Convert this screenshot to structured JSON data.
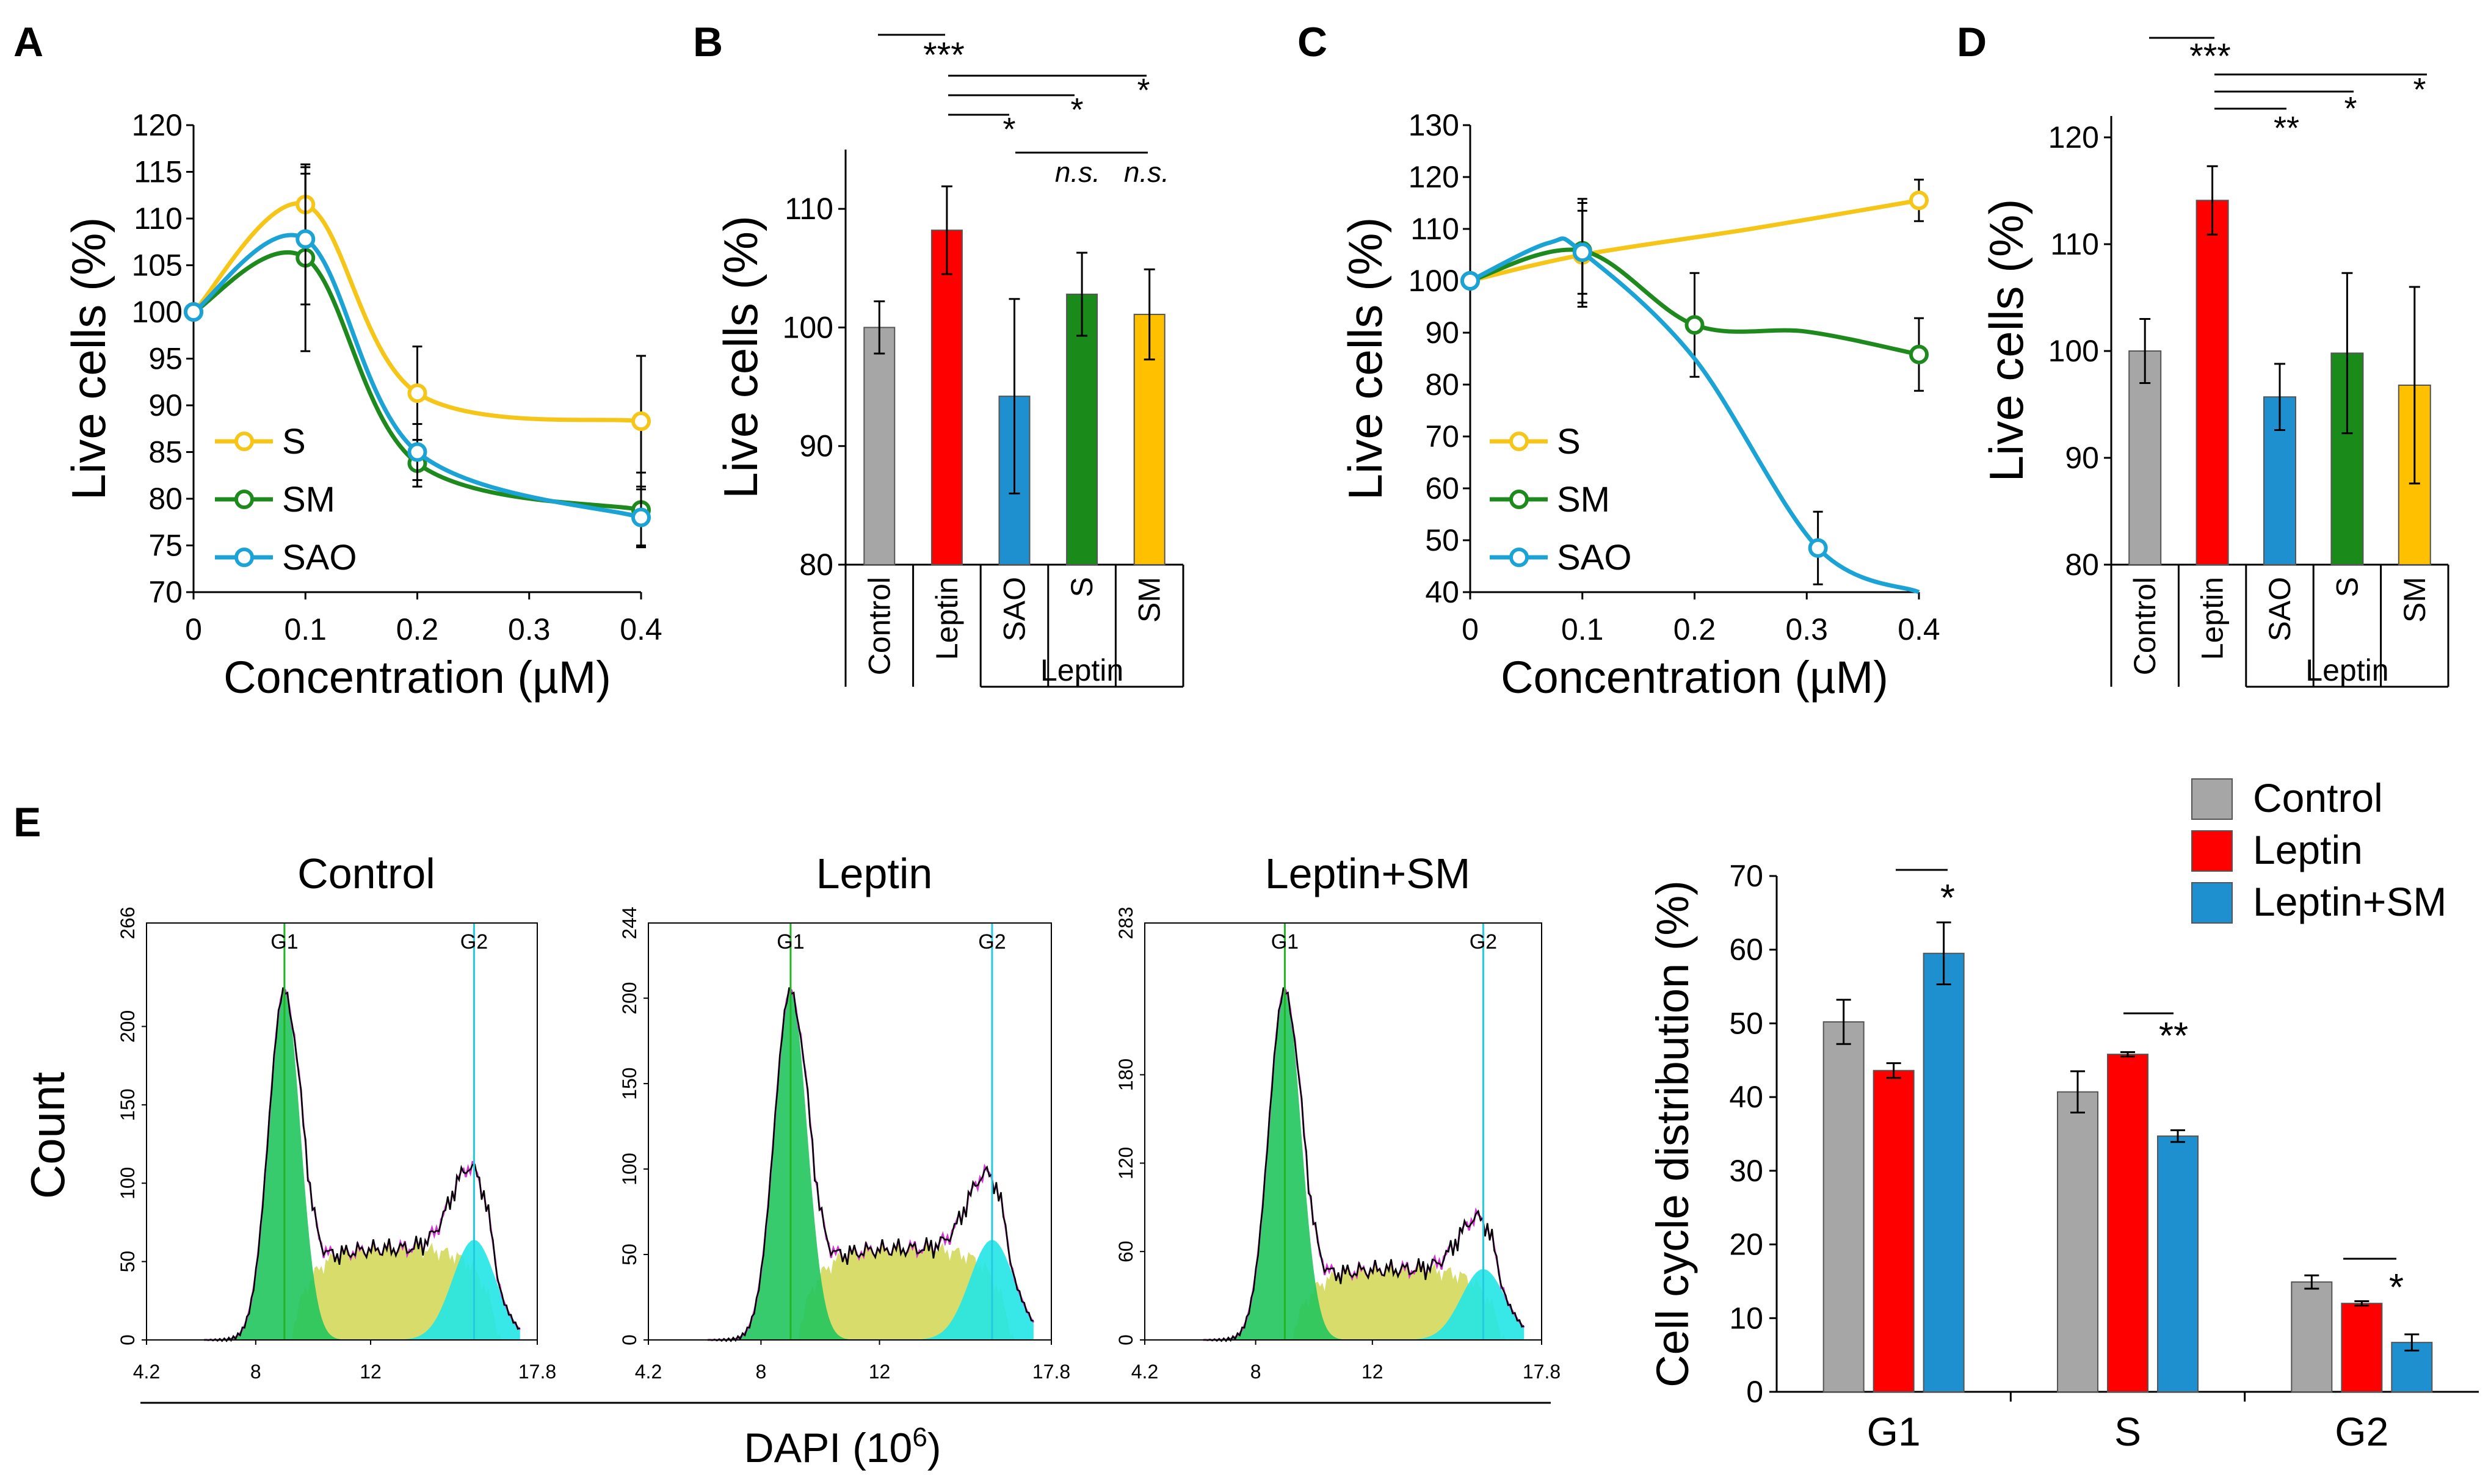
{
  "colors": {
    "S": "#F5C518",
    "SM": "#1E8A1E",
    "SAO": "#1BA3D6",
    "Control": "#A6A6A6",
    "Leptin": "#FF0000",
    "SAO_bar": "#1E90D0",
    "S_bar": "#1A8A1A",
    "SM_bar": "#FFC000",
    "G1_fill": "#22C55E",
    "G1_overlap": "#14B414",
    "S_fill": "#D8DC6A",
    "G2_fill": "#22E5E5",
    "fit_line": "#D633D6",
    "marker_g1": "#22B422",
    "marker_g2": "#22CCE0"
  },
  "chart_data": [
    {
      "panel": "A",
      "type": "line",
      "xlabel": "Concentration (µM)",
      "ylabel": "Live cells (%)",
      "xlim": [
        0,
        0.4
      ],
      "ylim": [
        70,
        120
      ],
      "xticks": [
        "0",
        "0.1",
        "0.2",
        "0.3",
        "0.4"
      ],
      "yticks": [
        "70",
        "75",
        "80",
        "85",
        "90",
        "95",
        "100",
        "105",
        "110",
        "115",
        "120"
      ],
      "x": [
        0,
        0.1,
        0.2,
        0.4
      ],
      "series": [
        {
          "name": "S",
          "values": [
            100,
            111.5,
            91.3,
            88.3
          ],
          "errors": [
            0,
            4,
            5,
            7
          ]
        },
        {
          "name": "SM",
          "values": [
            100,
            105.8,
            83.8,
            78.8
          ],
          "errors": [
            0,
            10,
            2.5,
            4
          ]
        },
        {
          "name": "SAO",
          "values": [
            100,
            107.8,
            85.0,
            78.0
          ],
          "errors": [
            0,
            7,
            3,
            3
          ]
        }
      ],
      "legend": [
        "S",
        "SM",
        "SAO"
      ]
    },
    {
      "panel": "B",
      "type": "bar",
      "ylabel": "Live cells (%)",
      "ylim": [
        80,
        115
      ],
      "yticks": [
        "80",
        "90",
        "100",
        "110"
      ],
      "categories": [
        "Control",
        "Leptin",
        "SAO",
        "S",
        "SM"
      ],
      "values": [
        100.0,
        108.2,
        94.2,
        102.8,
        101.1
      ],
      "errors": [
        2.2,
        3.7,
        8.2,
        3.5,
        3.8
      ],
      "group_label": "Leptin",
      "significance": [
        "***",
        "*",
        "*",
        "*",
        "n.s.",
        "n.s."
      ]
    },
    {
      "panel": "C",
      "type": "line",
      "xlabel": "Concentration (µM)",
      "ylabel": "Live cells (%)",
      "xlim": [
        0,
        0.4
      ],
      "ylim": [
        40,
        130
      ],
      "xticks": [
        "0",
        "0.1",
        "0.2",
        "0.3",
        "0.4"
      ],
      "yticks": [
        "40",
        "50",
        "60",
        "70",
        "80",
        "90",
        "100",
        "110",
        "120",
        "130"
      ],
      "series": [
        {
          "name": "S",
          "x": [
            0,
            0.1,
            0.4
          ],
          "values": [
            100,
            105,
            115.5
          ],
          "errors": [
            0,
            10,
            4
          ]
        },
        {
          "name": "SM",
          "x": [
            0,
            0.1,
            0.2,
            0.4
          ],
          "values": [
            100,
            105.8,
            91.5,
            85.8
          ],
          "errors": [
            0,
            10,
            10,
            7
          ]
        },
        {
          "name": "SAO",
          "x": [
            0,
            0.1,
            0.31
          ],
          "values": [
            100,
            105.5,
            48.5
          ],
          "errors": [
            0,
            8,
            7
          ]
        }
      ],
      "legend": [
        "S",
        "SM",
        "SAO"
      ]
    },
    {
      "panel": "D",
      "type": "bar",
      "ylabel": "Live cells (%)",
      "ylim": [
        80,
        122
      ],
      "yticks": [
        "80",
        "90",
        "100",
        "110",
        "120"
      ],
      "categories": [
        "Control",
        "Leptin",
        "SAO",
        "S",
        "SM"
      ],
      "values": [
        100.0,
        114.1,
        95.7,
        99.8,
        96.8
      ],
      "errors": [
        3.0,
        3.2,
        3.1,
        7.5,
        9.2
      ],
      "group_label": "Leptin",
      "significance": [
        "***",
        "**",
        "*",
        "*"
      ]
    },
    {
      "panel": "E-histograms",
      "type": "area",
      "xlabel": "DAPI (10",
      "xlabel_sup": "6",
      "xlabel_close": ")",
      "ylabel": "Count",
      "xticks": [
        "4.2",
        "8",
        "12",
        "17.8"
      ],
      "markers": [
        "G1",
        "G2"
      ],
      "plots": [
        {
          "title": "Control",
          "ymax_label": "266",
          "yticks": [
            "0",
            "50",
            "100",
            "150",
            "200"
          ],
          "ymax": 266,
          "g1_peak": 9.0,
          "g2_peak": 15.6
        },
        {
          "title": "Leptin",
          "ymax_label": "244",
          "yticks": [
            "0",
            "50",
            "100",
            "150",
            "200"
          ],
          "ymax": 244,
          "g1_peak": 9.0,
          "g2_peak": 15.8
        },
        {
          "title": "Leptin+SM",
          "ymax_label": "283",
          "yticks": [
            "0",
            "60",
            "120",
            "180"
          ],
          "ymax": 283,
          "g1_peak": 9.0,
          "g2_peak": 15.8
        }
      ]
    },
    {
      "panel": "E-bars",
      "type": "bar",
      "ylabel": "Cell cycle distribution (%)",
      "ylim": [
        0,
        70
      ],
      "yticks": [
        "0",
        "10",
        "20",
        "30",
        "40",
        "50",
        "60",
        "70"
      ],
      "categories": [
        "G1",
        "S",
        "G2"
      ],
      "series": [
        {
          "name": "Control",
          "values": [
            50.2,
            40.7,
            14.9
          ],
          "errors": [
            3.0,
            2.8,
            0.9
          ]
        },
        {
          "name": "Leptin",
          "values": [
            43.6,
            45.8,
            12.0
          ],
          "errors": [
            1.0,
            0.3,
            0.0
          ]
        },
        {
          "name": "Leptin+SM",
          "values": [
            59.5,
            34.7,
            6.7
          ],
          "errors": [
            4.2,
            0.8,
            1.1
          ]
        }
      ],
      "legend": [
        "Control",
        "Leptin",
        "Leptin+SM"
      ],
      "significance": [
        "*",
        "**",
        "*"
      ]
    }
  ],
  "panel_labels": [
    "A",
    "B",
    "C",
    "D",
    "E"
  ]
}
